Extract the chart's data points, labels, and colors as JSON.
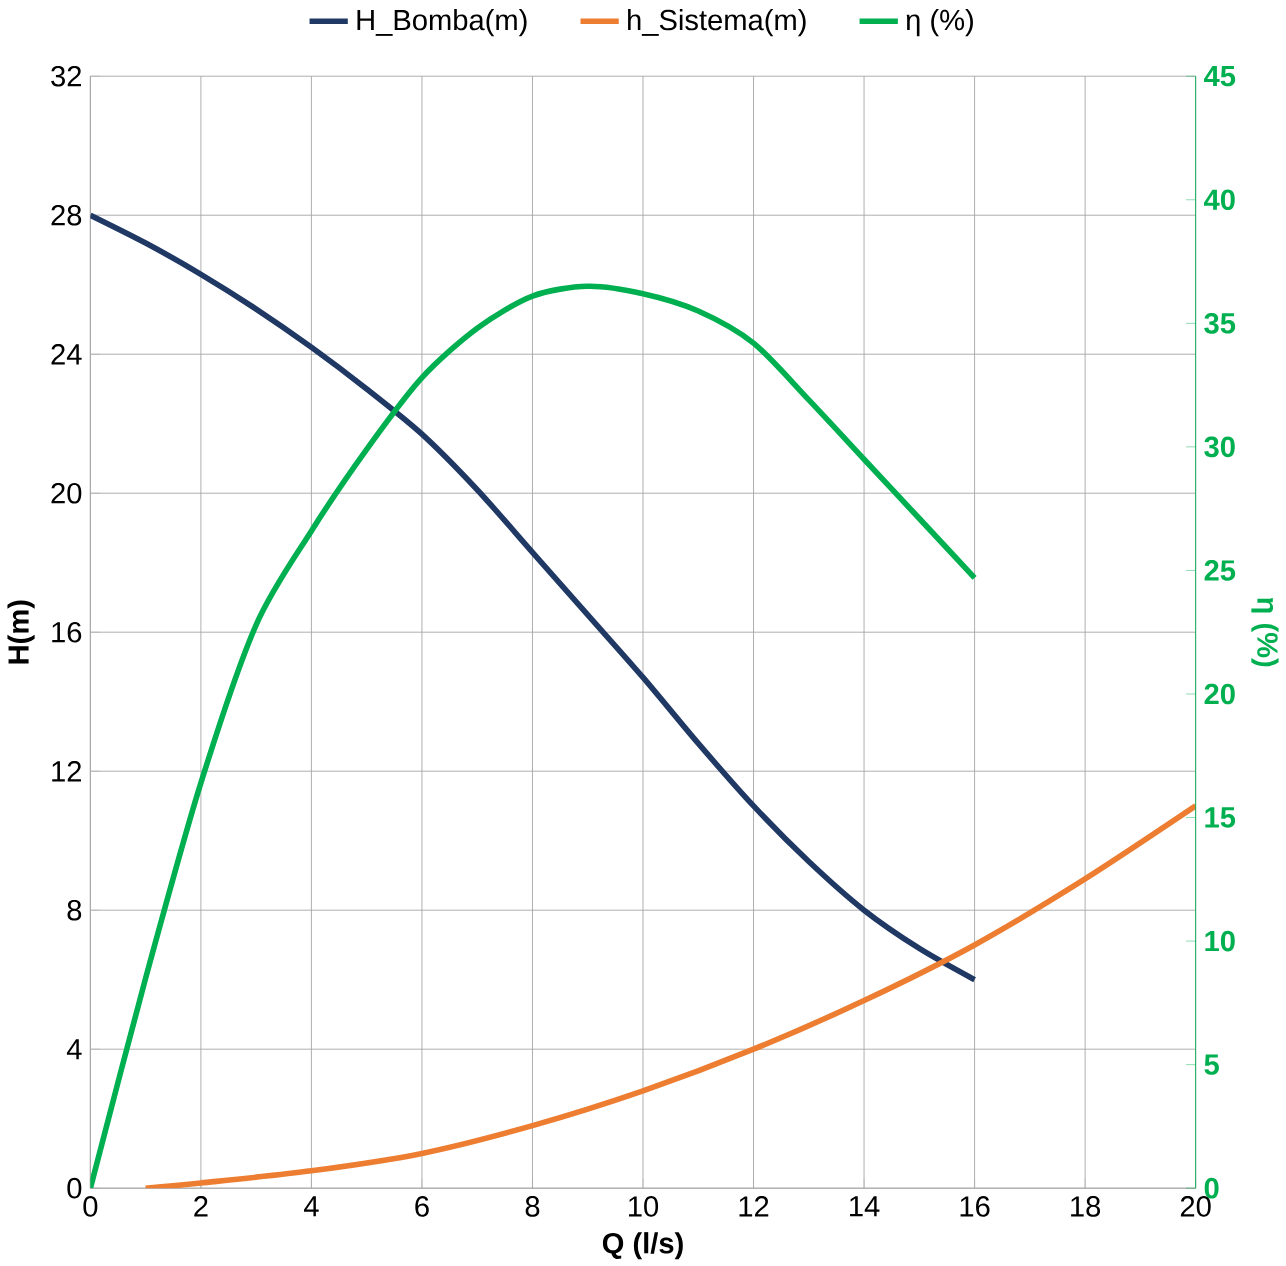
{
  "chart_data": {
    "type": "line",
    "xlabel": "Q (l/s)",
    "ylabel": "H(m)",
    "y2label": "η (%)",
    "xlim": [
      0,
      20
    ],
    "xticks": [
      0,
      2,
      4,
      6,
      8,
      10,
      12,
      14,
      16,
      18,
      20
    ],
    "ylim": [
      0,
      32
    ],
    "yticks": [
      0,
      4,
      8,
      12,
      16,
      20,
      24,
      28,
      32
    ],
    "y2lim": [
      0,
      45
    ],
    "y2ticks": [
      0,
      5,
      10,
      15,
      20,
      25,
      30,
      35,
      40,
      45
    ],
    "grid": true,
    "legend": "top",
    "marker": "none",
    "line_style": "solid",
    "series": [
      {
        "name": "H_Bomba(m)",
        "color": "#1f3864",
        "x": [
          0,
          1,
          2,
          3,
          4,
          5,
          6,
          7,
          8,
          9,
          10,
          11,
          12,
          13,
          14,
          15,
          16
        ],
        "values": [
          28,
          27.2,
          26.3,
          25.3,
          24.2,
          23,
          21.7,
          20.1,
          18.3,
          16.5,
          14.7,
          12.8,
          11,
          9.4,
          8,
          6.9,
          6
        ]
      },
      {
        "name": "h_Sistema(m)",
        "color": "#ed7d31",
        "x": [
          1,
          2,
          4,
          6,
          8,
          10,
          12,
          14,
          16,
          18,
          20
        ],
        "values": [
          0,
          0.15,
          0.5,
          1.0,
          1.8,
          2.8,
          4.0,
          5.4,
          7.0,
          8.9,
          11
        ]
      },
      {
        "name": "η (%)",
        "color": "#00b050",
        "axis": "y2",
        "x": [
          0,
          1,
          2,
          3,
          4,
          5,
          6,
          7,
          8,
          9,
          10,
          11,
          12,
          13,
          14,
          15,
          16
        ],
        "values": [
          0,
          8.5,
          16.4,
          22.8,
          26.6,
          29.9,
          32.8,
          34.8,
          36.1,
          36.5,
          36.2,
          35.5,
          34.2,
          31.9,
          29.5,
          27.1,
          24.7
        ]
      }
    ]
  }
}
